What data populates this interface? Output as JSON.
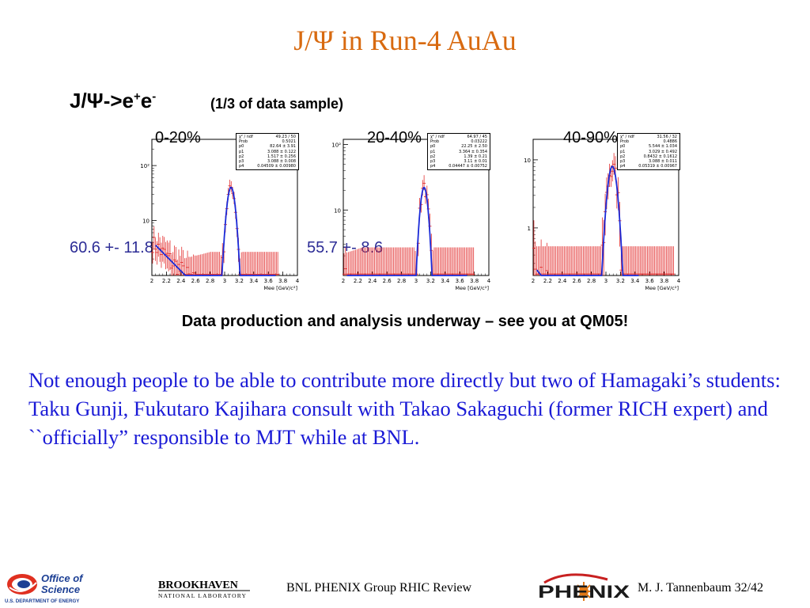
{
  "slide": {
    "title": "J/Ψ in Run-4 AuAu",
    "decay": {
      "base": "J/Ψ->e",
      "sup1": "+",
      "mid": "e",
      "sup2": "-"
    },
    "sample_note": "(1/3 of data sample)",
    "statement": "Data production and analysis underway – see you at QM05!",
    "body": "Not enough people to be able to contribute more directly but two of Hamagaki’s students: Taku Gunji, Fukutaro Kajihara consult with Takao Sakaguchi (former RICH expert) and ``officially” responsible to MJT while at BNL.",
    "footer": {
      "reference": "BNL PHENIX Group  RHIC Review",
      "author": "M. J. Tannenbaum  32/42"
    },
    "logos": {
      "office_of_science": {
        "line1": "Office of",
        "line2": "Science",
        "line3": "U.S. DEPARTMENT OF ENERGY"
      },
      "brookhaven": {
        "line1": "BROOKHAVEN",
        "line2": "NATIONAL LABORATORY"
      },
      "phenix": {
        "text": "PHENIX"
      }
    },
    "colors": {
      "title": "#d86a10",
      "body": "#1a1ad6",
      "counts": "#2d2d96",
      "data": "#e23030",
      "fit": "#1a2ad8"
    }
  },
  "chart_data": [
    {
      "type": "scatter",
      "title": "0-20%",
      "count_label": "60.6 +- 11.8",
      "xlabel": "Mee [GeV/c²]",
      "xlim": [
        2,
        4
      ],
      "ylog": true,
      "ylim": [
        1,
        300
      ],
      "xticks": [
        "2",
        "2.2",
        "2.4",
        "2.6",
        "2.8",
        "3",
        "3.2",
        "3.4",
        "3.6",
        "3.8",
        "4"
      ],
      "yticks": [
        {
          "value": 10,
          "label": "10"
        },
        {
          "value": 100,
          "label": "10²"
        }
      ],
      "fit_params": [
        {
          "name": "χ² / ndf",
          "value": "49.23 / 50"
        },
        {
          "name": "Prob",
          "value": "0.5021"
        },
        {
          "name": "p0",
          "value": "82.64 ± 3.91"
        },
        {
          "name": "p1",
          "value": "3.088 ± 0.122"
        },
        {
          "name": "p2",
          "value": "1.517 ± 0.256"
        },
        {
          "name": "p3",
          "value": "3.088 ± 0.008"
        },
        {
          "name": "p4",
          "value": "0.04509 ± 0.00980"
        }
      ],
      "fit": {
        "a": 2000,
        "slope": 3.088,
        "peak_mass": 3.088,
        "peak_height": 40,
        "sigma": 0.045
      }
    },
    {
      "type": "scatter",
      "title": "20-40%",
      "count_label": "55.7 +- 8.6",
      "xlabel": "Mee [GeV/c²]",
      "xlim": [
        2,
        4
      ],
      "ylog": true,
      "ylim": [
        1,
        120
      ],
      "xticks": [
        "2",
        "2.2",
        "2.4",
        "2.6",
        "2.8",
        "3",
        "3.2",
        "3.4",
        "3.6",
        "3.8",
        "4"
      ],
      "yticks": [
        {
          "value": 10,
          "label": "10"
        },
        {
          "value": 100,
          "label": "10²"
        }
      ],
      "fit_params": [
        {
          "name": "χ² / ndf",
          "value": "64.97 / 45"
        },
        {
          "name": "Prob",
          "value": "0.03222"
        },
        {
          "name": "p0",
          "value": "22.25 ± 2.50"
        },
        {
          "name": "p1",
          "value": "3.364 ± 0.354"
        },
        {
          "name": "p2",
          "value": "1.39 ± 0.21"
        },
        {
          "name": "p3",
          "value": "3.11 ± 0.01"
        },
        {
          "name": "p4",
          "value": "0.04447 ± 0.00752"
        }
      ],
      "fit": {
        "a": 700,
        "slope": 3.364,
        "peak_mass": 3.11,
        "peak_height": 22,
        "sigma": 0.044
      }
    },
    {
      "type": "scatter",
      "title": "40-90%",
      "count_label": "",
      "xlabel": "Mee [GeV/c²]",
      "xlim": [
        2,
        4
      ],
      "ylog": true,
      "ylim": [
        0.2,
        20
      ],
      "xticks": [
        "2",
        "2.2",
        "2.4",
        "2.6",
        "2.8",
        "3",
        "3.2",
        "3.4",
        "3.6",
        "3.8",
        "4"
      ],
      "yticks": [
        {
          "value": 1,
          "label": "1"
        },
        {
          "value": 10,
          "label": "10"
        }
      ],
      "fit_params": [
        {
          "name": "χ² / ndf",
          "value": "31.56 / 32"
        },
        {
          "name": "Prob",
          "value": "0.4886"
        },
        {
          "name": "p0",
          "value": "5.544 ± 1.034"
        },
        {
          "name": "p1",
          "value": "3.029 ± 0.492"
        },
        {
          "name": "p2",
          "value": "0.8432 ± 0.1612"
        },
        {
          "name": "p3",
          "value": "3.088 ± 0.011"
        },
        {
          "name": "p4",
          "value": "0.05319 ± 0.00967"
        }
      ],
      "fit": {
        "a": 120,
        "slope": 3.029,
        "peak_mass": 3.088,
        "peak_height": 8,
        "sigma": 0.053
      }
    }
  ]
}
